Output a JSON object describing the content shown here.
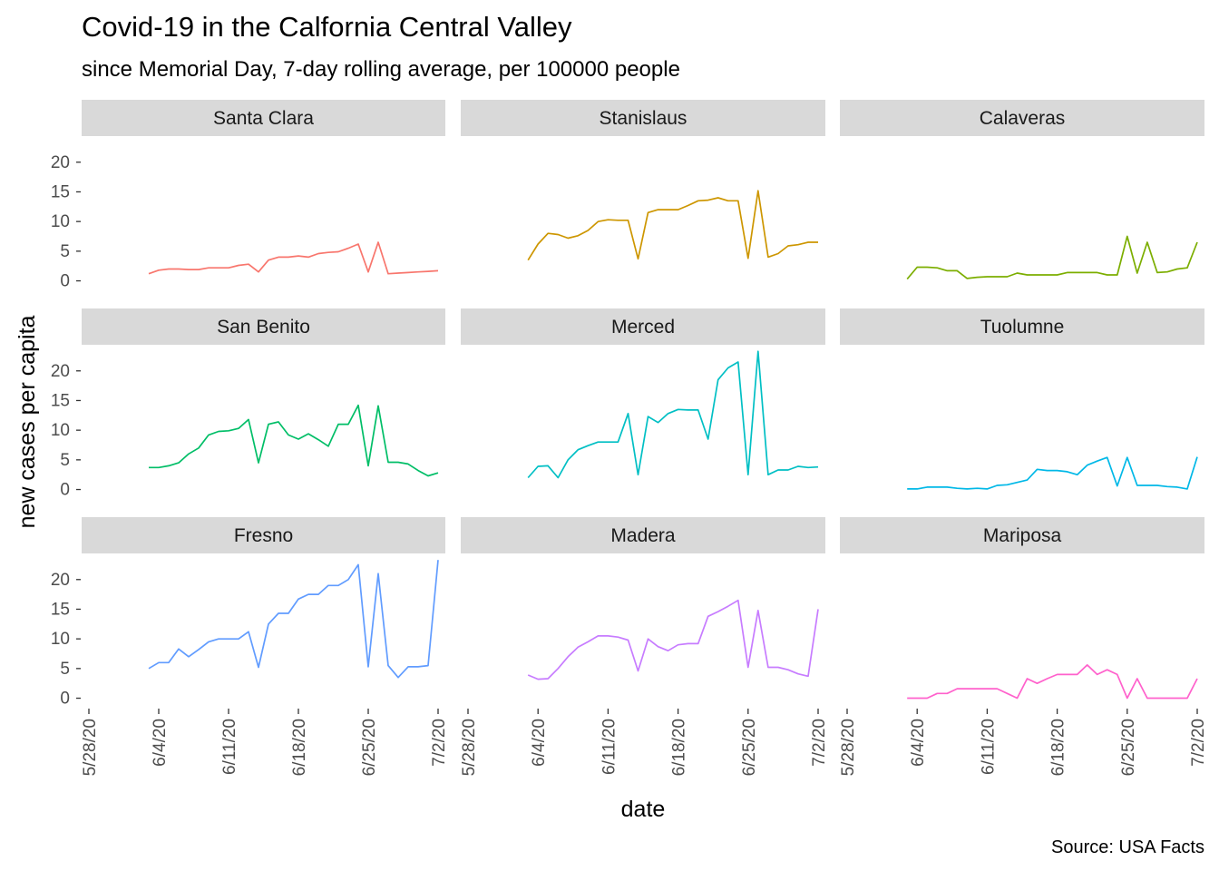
{
  "chart": {
    "title": "Covid-19 in the Calfornia Central Valley",
    "subtitle": "since Memorial Day, 7-day rolling average, per 100000 people",
    "xlabel": "date",
    "ylabel": "new cases per capita",
    "caption": "Source: USA Facts"
  },
  "chart_data": {
    "type": "line",
    "facet_layout": "3x3",
    "x_axis": {
      "type": "date",
      "tick_labels": [
        "5/28/20",
        "6/11/20",
        "6/18/20",
        "6/25/20",
        "6/4/20",
        "7/2/20"
      ],
      "range": [
        "2020-05-28",
        "2020-07-02"
      ]
    },
    "y_axis": {
      "ticks": [
        0,
        5,
        10,
        15,
        20
      ],
      "range": [
        0,
        23
      ],
      "shared": "per row"
    },
    "grid": false,
    "legend": "none",
    "series": [
      {
        "name": "Santa Clara",
        "color": "#F8766D",
        "x": [
          "2020-06-03",
          "2020-06-04",
          "2020-06-05",
          "2020-06-06",
          "2020-06-07",
          "2020-06-08",
          "2020-06-09",
          "2020-06-10",
          "2020-06-11",
          "2020-06-12",
          "2020-06-13",
          "2020-06-14",
          "2020-06-15",
          "2020-06-16",
          "2020-06-17",
          "2020-06-18",
          "2020-06-19",
          "2020-06-20",
          "2020-06-21",
          "2020-06-22",
          "2020-06-23",
          "2020-06-24",
          "2020-06-25",
          "2020-06-26",
          "2020-06-27",
          "2020-06-28",
          "2020-06-29",
          "2020-06-30",
          "2020-07-01",
          "2020-07-02"
        ],
        "y": [
          1.2,
          1.8,
          2.0,
          2.0,
          1.9,
          1.9,
          2.2,
          2.2,
          2.2,
          2.6,
          2.8,
          1.5,
          3.5,
          4.0,
          4.0,
          4.2,
          4.0,
          4.6,
          4.8,
          4.9,
          5.5,
          6.2,
          1.5,
          6.5,
          1.2,
          1.3,
          1.4,
          1.5,
          1.6,
          1.7
        ]
      },
      {
        "name": "Stanislaus",
        "color": "#CD9600",
        "x": [
          "2020-06-03",
          "2020-06-04",
          "2020-06-05",
          "2020-06-06",
          "2020-06-07",
          "2020-06-08",
          "2020-06-09",
          "2020-06-10",
          "2020-06-11",
          "2020-06-12",
          "2020-06-13",
          "2020-06-14",
          "2020-06-15",
          "2020-06-16",
          "2020-06-17",
          "2020-06-18",
          "2020-06-19",
          "2020-06-20",
          "2020-06-21",
          "2020-06-22",
          "2020-06-23",
          "2020-06-24",
          "2020-06-25",
          "2020-06-26",
          "2020-06-27",
          "2020-06-28",
          "2020-06-29",
          "2020-06-30",
          "2020-07-01",
          "2020-07-02"
        ],
        "y": [
          3.5,
          6.2,
          8.0,
          7.8,
          7.2,
          7.6,
          8.5,
          10.0,
          10.3,
          10.2,
          10.2,
          3.7,
          11.5,
          12.0,
          12.0,
          12.0,
          12.7,
          13.5,
          13.6,
          14.0,
          13.5,
          13.5,
          3.8,
          15.2,
          4.0,
          4.6,
          5.9,
          6.1,
          6.5,
          6.5
        ]
      },
      {
        "name": "Calaveras",
        "color": "#7CAE00",
        "x": [
          "2020-06-03",
          "2020-06-04",
          "2020-06-05",
          "2020-06-06",
          "2020-06-07",
          "2020-06-08",
          "2020-06-09",
          "2020-06-10",
          "2020-06-11",
          "2020-06-12",
          "2020-06-13",
          "2020-06-14",
          "2020-06-15",
          "2020-06-16",
          "2020-06-17",
          "2020-06-18",
          "2020-06-19",
          "2020-06-20",
          "2020-06-21",
          "2020-06-22",
          "2020-06-23",
          "2020-06-24",
          "2020-06-25",
          "2020-06-26",
          "2020-06-27",
          "2020-06-28",
          "2020-06-29",
          "2020-06-30",
          "2020-07-01",
          "2020-07-02"
        ],
        "y": [
          0.3,
          2.3,
          2.3,
          2.2,
          1.7,
          1.7,
          0.4,
          0.6,
          0.7,
          0.7,
          0.7,
          1.3,
          1.0,
          1.0,
          1.0,
          1.0,
          1.4,
          1.4,
          1.4,
          1.4,
          1.0,
          1.0,
          7.5,
          1.3,
          6.5,
          1.4,
          1.5,
          2.0,
          2.2,
          6.5
        ]
      },
      {
        "name": "San Benito",
        "color": "#00BE67",
        "x": [
          "2020-06-03",
          "2020-06-04",
          "2020-06-05",
          "2020-06-06",
          "2020-06-07",
          "2020-06-08",
          "2020-06-09",
          "2020-06-10",
          "2020-06-11",
          "2020-06-12",
          "2020-06-13",
          "2020-06-14",
          "2020-06-15",
          "2020-06-16",
          "2020-06-17",
          "2020-06-18",
          "2020-06-19",
          "2020-06-20",
          "2020-06-21",
          "2020-06-22",
          "2020-06-23",
          "2020-06-24",
          "2020-06-25",
          "2020-06-26",
          "2020-06-27",
          "2020-06-28",
          "2020-06-29",
          "2020-06-30",
          "2020-07-01",
          "2020-07-02"
        ],
        "y": [
          3.7,
          3.7,
          4.0,
          4.5,
          6.0,
          7.0,
          9.2,
          9.8,
          9.9,
          10.3,
          11.8,
          4.5,
          11.0,
          11.4,
          9.2,
          8.5,
          9.4,
          8.4,
          7.3,
          11.0,
          11.0,
          14.2,
          4.0,
          14.1,
          4.6,
          4.6,
          4.3,
          3.2,
          2.3,
          2.8
        ]
      },
      {
        "name": "Merced",
        "color": "#00BFC4",
        "x": [
          "2020-06-03",
          "2020-06-04",
          "2020-06-05",
          "2020-06-06",
          "2020-06-07",
          "2020-06-08",
          "2020-06-09",
          "2020-06-10",
          "2020-06-11",
          "2020-06-12",
          "2020-06-13",
          "2020-06-14",
          "2020-06-15",
          "2020-06-16",
          "2020-06-17",
          "2020-06-18",
          "2020-06-19",
          "2020-06-20",
          "2020-06-21",
          "2020-06-22",
          "2020-06-23",
          "2020-06-24",
          "2020-06-25",
          "2020-06-26",
          "2020-06-27",
          "2020-06-28",
          "2020-06-29",
          "2020-06-30",
          "2020-07-01",
          "2020-07-02"
        ],
        "y": [
          2.0,
          3.9,
          4.0,
          2.0,
          5.0,
          6.7,
          7.4,
          8.0,
          8.0,
          8.0,
          12.8,
          2.5,
          12.3,
          11.3,
          12.8,
          13.5,
          13.4,
          13.4,
          8.5,
          18.5,
          20.5,
          21.5,
          2.5,
          23.3,
          2.5,
          3.3,
          3.3,
          3.9,
          3.7,
          3.8
        ]
      },
      {
        "name": "Tuolumne",
        "color": "#00B8E7",
        "x": [
          "2020-06-03",
          "2020-06-04",
          "2020-06-05",
          "2020-06-06",
          "2020-06-07",
          "2020-06-08",
          "2020-06-09",
          "2020-06-10",
          "2020-06-11",
          "2020-06-12",
          "2020-06-13",
          "2020-06-14",
          "2020-06-15",
          "2020-06-16",
          "2020-06-17",
          "2020-06-18",
          "2020-06-19",
          "2020-06-20",
          "2020-06-21",
          "2020-06-22",
          "2020-06-23",
          "2020-06-24",
          "2020-06-25",
          "2020-06-26",
          "2020-06-27",
          "2020-06-28",
          "2020-06-29",
          "2020-06-30",
          "2020-07-01",
          "2020-07-02"
        ],
        "y": [
          0.1,
          0.1,
          0.4,
          0.4,
          0.4,
          0.2,
          0.1,
          0.2,
          0.1,
          0.7,
          0.8,
          1.2,
          1.6,
          3.4,
          3.2,
          3.2,
          3.0,
          2.5,
          4.1,
          4.8,
          5.4,
          0.6,
          5.4,
          0.7,
          0.7,
          0.7,
          0.5,
          0.4,
          0.1,
          5.5
        ]
      },
      {
        "name": "Fresno",
        "color": "#619CFF",
        "x": [
          "2020-06-03",
          "2020-06-04",
          "2020-06-05",
          "2020-06-06",
          "2020-06-07",
          "2020-06-08",
          "2020-06-09",
          "2020-06-10",
          "2020-06-11",
          "2020-06-12",
          "2020-06-13",
          "2020-06-14",
          "2020-06-15",
          "2020-06-16",
          "2020-06-17",
          "2020-06-18",
          "2020-06-19",
          "2020-06-20",
          "2020-06-21",
          "2020-06-22",
          "2020-06-23",
          "2020-06-24",
          "2020-06-25",
          "2020-06-26",
          "2020-06-27",
          "2020-06-28",
          "2020-06-29",
          "2020-06-30",
          "2020-07-01",
          "2020-07-02"
        ],
        "y": [
          5.0,
          6.0,
          6.0,
          8.3,
          7.0,
          8.2,
          9.5,
          10.0,
          10.0,
          10.0,
          11.2,
          5.2,
          12.5,
          14.3,
          14.3,
          16.7,
          17.5,
          17.5,
          19.0,
          19.0,
          20.0,
          22.5,
          5.3,
          21.0,
          5.5,
          3.5,
          5.3,
          5.3,
          5.5,
          23.3
        ]
      },
      {
        "name": "Madera",
        "color": "#C77CFF",
        "x": [
          "2020-06-03",
          "2020-06-04",
          "2020-06-05",
          "2020-06-06",
          "2020-06-07",
          "2020-06-08",
          "2020-06-09",
          "2020-06-10",
          "2020-06-11",
          "2020-06-12",
          "2020-06-13",
          "2020-06-14",
          "2020-06-15",
          "2020-06-16",
          "2020-06-17",
          "2020-06-18",
          "2020-06-19",
          "2020-06-20",
          "2020-06-21",
          "2020-06-22",
          "2020-06-23",
          "2020-06-24",
          "2020-06-25",
          "2020-06-26",
          "2020-06-27",
          "2020-06-28",
          "2020-06-29",
          "2020-06-30",
          "2020-07-01",
          "2020-07-02"
        ],
        "y": [
          3.9,
          3.2,
          3.3,
          5.0,
          7.0,
          8.6,
          9.5,
          10.5,
          10.5,
          10.3,
          9.8,
          4.6,
          10.0,
          8.7,
          8.0,
          9.0,
          9.2,
          9.2,
          13.8,
          14.6,
          15.5,
          16.5,
          5.2,
          14.8,
          5.2,
          5.2,
          4.8,
          4.1,
          3.7,
          15.0
        ]
      },
      {
        "name": "Mariposa",
        "color": "#FF61CC",
        "x": [
          "2020-06-03",
          "2020-06-04",
          "2020-06-05",
          "2020-06-06",
          "2020-06-07",
          "2020-06-08",
          "2020-06-09",
          "2020-06-10",
          "2020-06-11",
          "2020-06-12",
          "2020-06-13",
          "2020-06-14",
          "2020-06-15",
          "2020-06-16",
          "2020-06-17",
          "2020-06-18",
          "2020-06-19",
          "2020-06-20",
          "2020-06-21",
          "2020-06-22",
          "2020-06-23",
          "2020-06-24",
          "2020-06-25",
          "2020-06-26",
          "2020-06-27",
          "2020-06-28",
          "2020-06-29",
          "2020-06-30",
          "2020-07-01",
          "2020-07-02"
        ],
        "y": [
          0.0,
          0.0,
          0.0,
          0.8,
          0.8,
          1.6,
          1.6,
          1.6,
          1.6,
          1.6,
          0.8,
          0.0,
          3.3,
          2.5,
          3.3,
          4.0,
          4.0,
          4.0,
          5.6,
          4.0,
          4.8,
          4.0,
          0.0,
          3.3,
          0.0,
          0.0,
          0.0,
          0.0,
          0.0,
          3.3
        ]
      }
    ]
  }
}
